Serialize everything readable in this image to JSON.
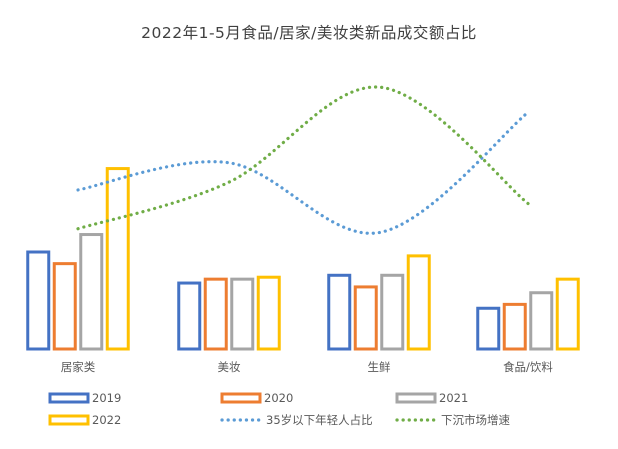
{
  "chart_data": {
    "type": "bar",
    "title": "2022年1-5月食品/居家/美妆类新品成交额占比",
    "categories": [
      "居家类",
      "美妆",
      "生鲜",
      "食品/饮料"
    ],
    "series": [
      {
        "name": "2019",
        "type": "bar",
        "color": "#4472C4",
        "values": [
          0.5,
          0.34,
          0.38,
          0.21
        ]
      },
      {
        "name": "2020",
        "type": "bar",
        "color": "#ED7D31",
        "values": [
          0.44,
          0.36,
          0.32,
          0.23
        ]
      },
      {
        "name": "2021",
        "type": "bar",
        "color": "#A5A5A5",
        "values": [
          0.59,
          0.36,
          0.38,
          0.29
        ]
      },
      {
        "name": "2022",
        "type": "bar",
        "color": "#FFC000",
        "values": [
          0.93,
          0.37,
          0.48,
          0.36
        ]
      }
    ],
    "lines": [
      {
        "name": "35岁以下年轻人占比",
        "type": "line",
        "style": "dotted",
        "color": "#5B9BD5",
        "values": [
          0.82,
          0.96,
          0.6,
          1.22
        ]
      },
      {
        "name": "下沉市场增速",
        "type": "line",
        "style": "dotted",
        "color": "#70AD47",
        "values": [
          0.62,
          0.86,
          1.35,
          0.75
        ]
      }
    ],
    "ylim": [
      0,
      1.5
    ],
    "grid": false,
    "legend": "bottom"
  }
}
